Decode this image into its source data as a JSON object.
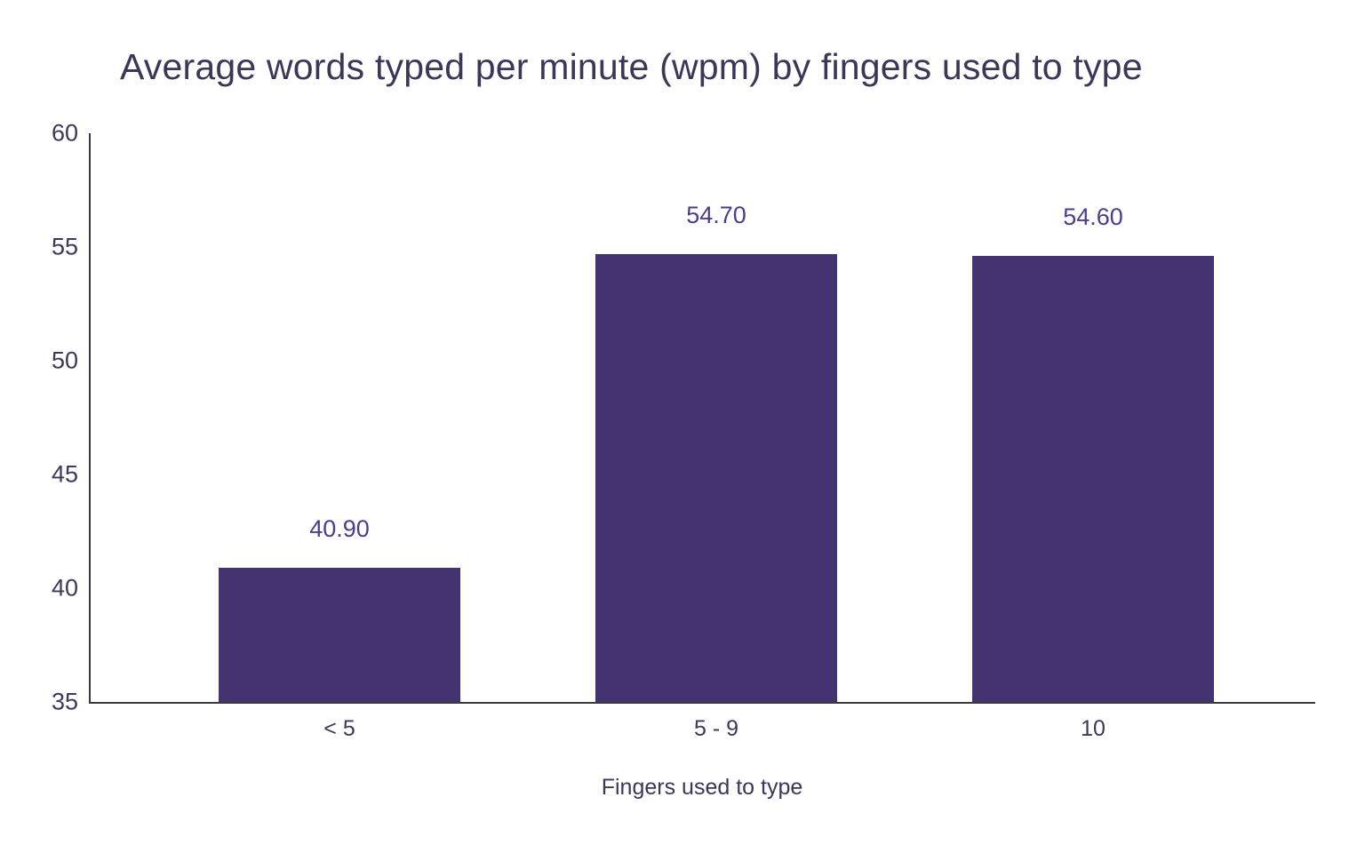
{
  "chart_data": {
    "type": "bar",
    "title": "Average words typed per minute (wpm) by fingers used to type",
    "xlabel": "Fingers used to type",
    "ylabel": "",
    "categories": [
      "< 5",
      "5 - 9",
      "10"
    ],
    "values": [
      40.9,
      54.7,
      54.6
    ],
    "value_labels": [
      "40.90",
      "54.70",
      "54.60"
    ],
    "ylim": [
      35,
      60
    ],
    "yticks": [
      35,
      40,
      45,
      50,
      55,
      60
    ],
    "grid": "off",
    "legend": "none",
    "bar_color": "#443370",
    "value_label_color": "#4d3c8d",
    "text_color": "#3c395c",
    "axis_color": "#3a3a3a",
    "background_color": "#ffffff"
  }
}
